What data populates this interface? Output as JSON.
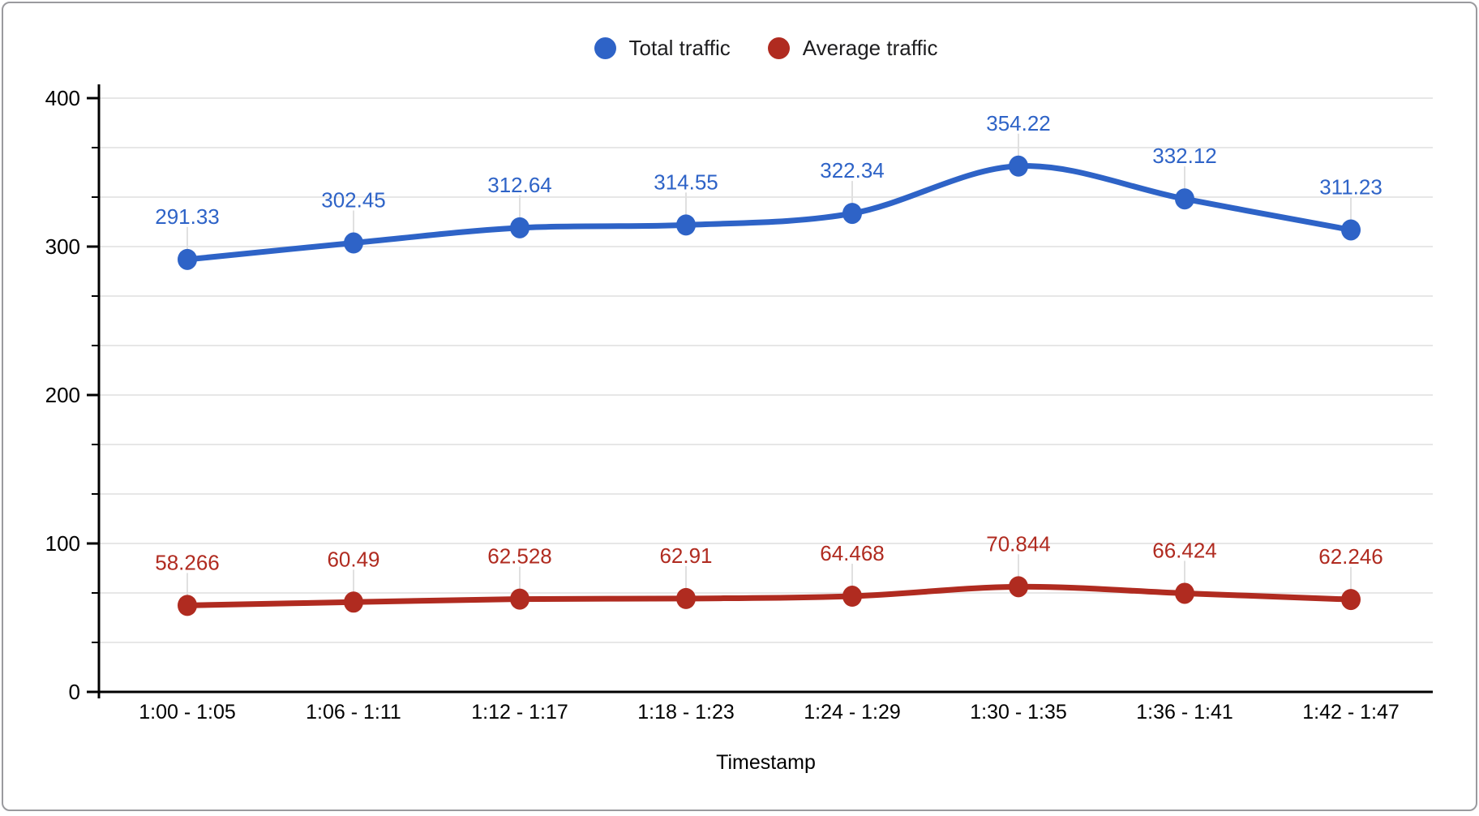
{
  "chart_data": {
    "type": "line",
    "title": "",
    "categories": [
      "1:00 - 1:05",
      "1:06 - 1:11",
      "1:12 - 1:17",
      "1:18 - 1:23",
      "1:24 - 1:29",
      "1:30 - 1:35",
      "1:36 - 1:41",
      "1:42 - 1:47"
    ],
    "series": [
      {
        "name": "Total traffic",
        "color": "#2e63c7",
        "values": [
          291.33,
          302.45,
          312.64,
          314.55,
          322.34,
          354.22,
          332.12,
          311.23
        ],
        "labels": [
          "291.33",
          "302.45",
          "312.64",
          "314.55",
          "322.34",
          "354.22",
          "332.12",
          "311.23"
        ]
      },
      {
        "name": "Average traffic",
        "color": "#b02b20",
        "values": [
          58.266,
          60.49,
          62.528,
          62.91,
          64.468,
          70.844,
          66.424,
          62.246
        ],
        "labels": [
          "58.266",
          "60.49",
          "62.528",
          "62.91",
          "64.468",
          "70.844",
          "66.424",
          "62.246"
        ]
      }
    ],
    "xlabel": "Timestamp",
    "ylabel": "",
    "ylim": [
      0,
      400
    ],
    "yticks": [
      0,
      100,
      200,
      300,
      400
    ],
    "ytick_labels": [
      "0",
      "100",
      "200",
      "300",
      "400"
    ],
    "minor_gridline_divisions": 3,
    "grid": true,
    "legend_position": "top",
    "smooth_lines": true,
    "colors": {
      "gridline": "#e7e7e7",
      "axis": "#000000",
      "tick_label": "#000000",
      "label_stem": "#e0e0e0"
    }
  }
}
